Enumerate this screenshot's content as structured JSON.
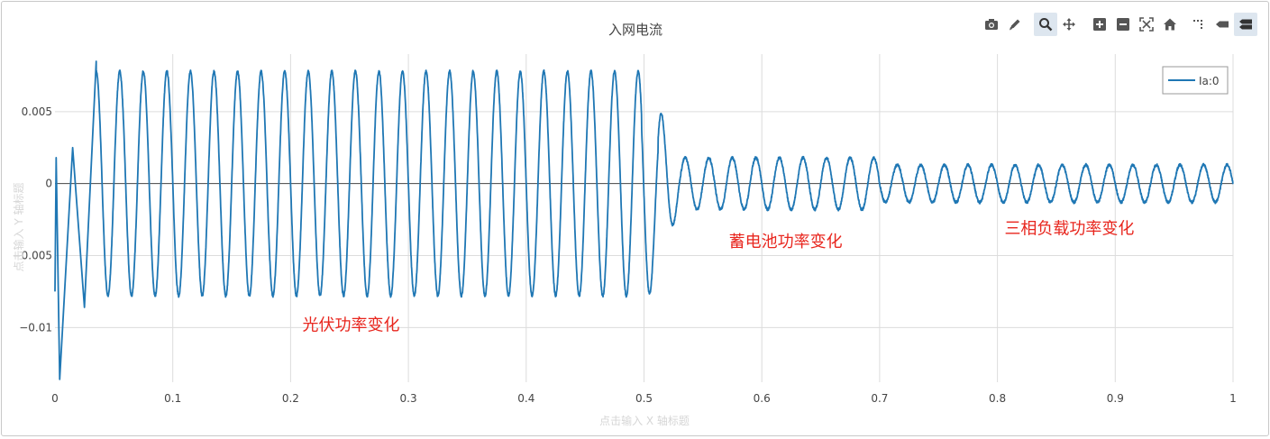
{
  "toolbar": {
    "buttons": [
      {
        "name": "camera-icon",
        "label": "Download plot as png"
      },
      {
        "name": "pencil-icon",
        "label": "Edit"
      },
      {
        "name": "zoom-icon",
        "label": "Zoom",
        "active": true
      },
      {
        "name": "pan-icon",
        "label": "Pan"
      },
      {
        "name": "zoom-in-icon",
        "label": "Zoom in"
      },
      {
        "name": "zoom-out-icon",
        "label": "Zoom out"
      },
      {
        "name": "autoscale-icon",
        "label": "Autoscale"
      },
      {
        "name": "home-icon",
        "label": "Reset axes"
      },
      {
        "name": "spike-lines-icon",
        "label": "Toggle Spike Lines"
      },
      {
        "name": "hover-closest-icon",
        "label": "Show closest data on hover"
      },
      {
        "name": "hover-compare-icon",
        "label": "Compare data on hover",
        "active": true
      }
    ]
  },
  "chart_data": {
    "type": "line",
    "title": "入网电流",
    "xlabel": "点击输入 X 轴标题",
    "ylabel": "点击输入 Y 轴标题",
    "xlim": [
      0,
      1
    ],
    "ylim": [
      -0.0138,
      0.009
    ],
    "x_ticks": [
      0,
      0.1,
      0.2,
      0.3,
      0.4,
      0.5,
      0.6,
      0.7,
      0.8,
      0.9,
      1
    ],
    "x_tick_labels": [
      "0",
      "0.1",
      "0.2",
      "0.3",
      "0.4",
      "0.5",
      "0.6",
      "0.7",
      "0.8",
      "0.9",
      "1"
    ],
    "y_ticks": [
      -0.01,
      -0.005,
      0,
      0.005
    ],
    "y_tick_labels": [
      "−0.01",
      "−0.005",
      "0",
      "0.005"
    ],
    "grid": true,
    "legend_position": "top-right",
    "frequency_hz": 50,
    "series": [
      {
        "name": "Ia:0",
        "color": "#1f77b4",
        "segments": [
          {
            "t_start": 0.03,
            "t_end": 0.5,
            "amplitude": 0.0078,
            "offset": 0.0
          },
          {
            "t_start": 0.53,
            "t_end": 0.7,
            "amplitude": 0.0018,
            "offset": 0.0
          },
          {
            "t_start": 0.7,
            "t_end": 1.0,
            "amplitude": 0.0013,
            "offset": 0.0
          }
        ],
        "key_points": [
          {
            "x": 0.0,
            "y": -0.0075
          },
          {
            "x": 0.001,
            "y": 0.0018
          },
          {
            "x": 0.004,
            "y": -0.0136
          },
          {
            "x": 0.015,
            "y": 0.0025
          },
          {
            "x": 0.025,
            "y": -0.0086
          },
          {
            "x": 0.035,
            "y": 0.0085
          },
          {
            "x": 0.505,
            "y": -0.006
          },
          {
            "x": 0.515,
            "y": 0.0016
          },
          {
            "x": 1.0,
            "y": 0.0
          }
        ]
      }
    ],
    "annotations": [
      {
        "text": "光伏功率变化",
        "x": 0.21,
        "y": -0.0102
      },
      {
        "text": "蓄电池功率变化",
        "x": 0.572,
        "y": -0.0044
      },
      {
        "text": "三相负载功率变化",
        "x": 0.806,
        "y": -0.0035
      }
    ],
    "annotation_color": "#e8261e"
  }
}
